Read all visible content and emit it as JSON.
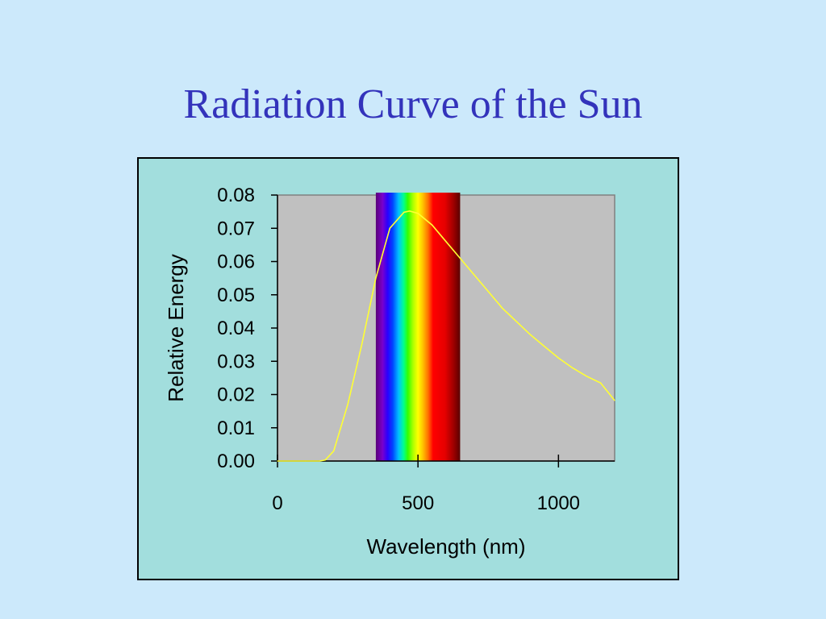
{
  "slide": {
    "title": "Radiation Curve of the Sun",
    "background_color": "#cce9fb",
    "title_color": "#3333bb"
  },
  "chart_data": {
    "type": "line",
    "title": "",
    "xlabel": "Wavelength (nm)",
    "ylabel": "Relative Energy",
    "xlim": [
      0,
      1200
    ],
    "ylim": [
      0,
      0.08
    ],
    "x_ticks": [
      "0",
      "500",
      "1000"
    ],
    "y_ticks": [
      "0.00",
      "0.01",
      "0.02",
      "0.03",
      "0.04",
      "0.05",
      "0.06",
      "0.07",
      "0.08"
    ],
    "grid": false,
    "legend": "none",
    "plot_background": "#c0c0c0",
    "panel_background": "#a2dedd",
    "line_color": "#ffff33",
    "visible_spectrum_band": {
      "from_nm": 350,
      "to_nm": 650
    },
    "series": [
      {
        "x": [
          0,
          100,
          150,
          170,
          200,
          250,
          300,
          350,
          400,
          450,
          470,
          500,
          550,
          600,
          650,
          700,
          750,
          800,
          850,
          900,
          950,
          1000,
          1050,
          1100,
          1150,
          1200
        ],
        "values": [
          0.0,
          0.0,
          0.0,
          0.0003,
          0.003,
          0.017,
          0.035,
          0.055,
          0.07,
          0.0748,
          0.0752,
          0.0745,
          0.071,
          0.066,
          0.061,
          0.056,
          0.051,
          0.046,
          0.042,
          0.038,
          0.0345,
          0.031,
          0.028,
          0.0255,
          0.0235,
          0.0182
        ]
      }
    ]
  }
}
